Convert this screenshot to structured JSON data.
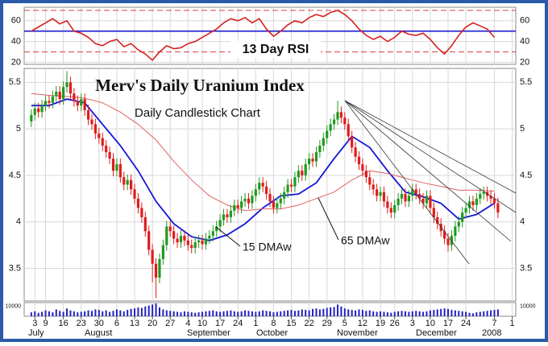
{
  "chart_data": [
    {
      "type": "line",
      "title": "13 Day RSI",
      "color": "#d62020",
      "x": [
        0,
        2,
        4,
        6,
        8,
        10,
        12,
        14,
        16,
        18,
        20,
        22,
        24,
        26,
        28,
        30,
        32,
        34,
        36,
        38,
        40,
        42,
        44,
        46,
        48,
        50,
        52,
        54,
        56,
        58,
        60,
        62,
        64,
        66,
        68,
        70,
        72,
        74,
        76,
        78,
        80,
        82,
        84,
        86,
        88,
        90,
        92,
        94,
        96,
        98,
        100,
        102,
        104,
        106,
        108,
        110,
        112,
        114,
        116,
        118,
        120,
        122,
        124,
        126,
        128,
        130
      ],
      "values": [
        50,
        54,
        58,
        62,
        57,
        60,
        50,
        48,
        44,
        38,
        36,
        40,
        42,
        35,
        38,
        32,
        28,
        22,
        30,
        36,
        33,
        34,
        38,
        40,
        44,
        48,
        52,
        58,
        62,
        60,
        63,
        58,
        62,
        52,
        45,
        50,
        56,
        60,
        58,
        63,
        66,
        64,
        68,
        70,
        66,
        60,
        52,
        46,
        42,
        45,
        40,
        44,
        50,
        47,
        46,
        48,
        42,
        34,
        28,
        36,
        46,
        54,
        58,
        55,
        52,
        44
      ],
      "ylim": [
        18,
        73
      ],
      "yticks": [
        20,
        40,
        60
      ],
      "reference_lines": [
        {
          "value": 70,
          "color": "#d84040",
          "dashed": true
        },
        {
          "value": 50,
          "color": "#1a1ad0",
          "dashed": false
        },
        {
          "value": 30,
          "color": "#d84040",
          "dashed": true
        }
      ]
    },
    {
      "type": "candlestick",
      "title": "Merv's Daily Uranium Index",
      "subtitle": "Daily Candlestick Chart",
      "up_color": "#1f9a1f",
      "down_color": "#e01c1c",
      "grid": true,
      "x": [
        0,
        1,
        2,
        3,
        4,
        5,
        6,
        7,
        8,
        9,
        10,
        11,
        12,
        13,
        14,
        15,
        16,
        17,
        18,
        19,
        20,
        21,
        22,
        23,
        24,
        25,
        26,
        27,
        28,
        29,
        30,
        31,
        32,
        33,
        34,
        35,
        36,
        37,
        38,
        39,
        40,
        41,
        42,
        43,
        44,
        45,
        46,
        47,
        48,
        49,
        50,
        51,
        52,
        53,
        54,
        55,
        56,
        57,
        58,
        59,
        60,
        61,
        62,
        63,
        64,
        65,
        66,
        67,
        68,
        69,
        70,
        71,
        72,
        73,
        74,
        75,
        76,
        77,
        78,
        79,
        80,
        81,
        82,
        83,
        84,
        85,
        86,
        87,
        88,
        89,
        90,
        91,
        92,
        93,
        94,
        95,
        96,
        97,
        98,
        99,
        100,
        101,
        102,
        103,
        104,
        105,
        106,
        107,
        108,
        109,
        110,
        111,
        112,
        113,
        114,
        115,
        116,
        117,
        118,
        119,
        120,
        121,
        122,
        123,
        124,
        125,
        126,
        127,
        128,
        129,
        130,
        131
      ],
      "open": [
        5.08,
        5.15,
        5.22,
        5.18,
        5.25,
        5.3,
        5.28,
        5.35,
        5.4,
        5.32,
        5.45,
        5.5,
        5.38,
        5.3,
        5.25,
        5.32,
        5.2,
        5.1,
        5.05,
        4.95,
        4.9,
        4.82,
        4.75,
        4.68,
        4.55,
        4.62,
        4.48,
        4.4,
        4.45,
        4.35,
        4.25,
        4.15,
        4.05,
        3.9,
        3.7,
        3.55,
        3.4,
        3.6,
        3.75,
        3.95,
        3.9,
        3.82,
        3.78,
        3.85,
        3.8,
        3.75,
        3.72,
        3.78,
        3.8,
        3.76,
        3.82,
        3.85,
        3.9,
        3.95,
        4.02,
        4.08,
        4.05,
        4.12,
        4.18,
        4.15,
        4.22,
        4.25,
        4.2,
        4.28,
        4.35,
        4.42,
        4.38,
        4.3,
        4.22,
        4.15,
        4.2,
        4.25,
        4.32,
        4.4,
        4.38,
        4.48,
        4.55,
        4.5,
        4.62,
        4.68,
        4.65,
        4.75,
        4.82,
        4.9,
        4.98,
        5.05,
        5.1,
        5.18,
        5.12,
        5.05,
        4.92,
        4.8,
        4.7,
        4.62,
        4.55,
        4.48,
        4.4,
        4.35,
        4.28,
        4.32,
        4.22,
        4.15,
        4.1,
        4.18,
        4.25,
        4.3,
        4.22,
        4.28,
        4.35,
        4.3,
        4.25,
        4.2,
        4.28,
        4.15,
        4.05,
        3.98,
        3.9,
        3.82,
        3.75,
        3.85,
        3.95,
        4.0,
        4.1,
        4.15,
        4.22,
        4.18,
        4.25,
        4.3,
        4.32,
        4.28,
        4.25,
        4.2
      ],
      "high": [
        5.21,
        5.28,
        5.28,
        5.31,
        5.36,
        5.36,
        5.41,
        5.46,
        5.46,
        5.51,
        5.62,
        5.56,
        5.44,
        5.36,
        5.38,
        5.38,
        5.26,
        5.16,
        5.11,
        5.01,
        4.96,
        4.88,
        4.81,
        4.74,
        4.68,
        4.68,
        4.54,
        4.51,
        4.51,
        4.41,
        4.31,
        4.21,
        4.11,
        3.96,
        3.76,
        3.61,
        3.66,
        3.81,
        4.01,
        4.01,
        3.96,
        3.88,
        3.91,
        3.91,
        3.86,
        3.81,
        3.84,
        3.86,
        3.86,
        3.88,
        3.91,
        3.96,
        4.01,
        4.08,
        4.14,
        4.14,
        4.18,
        4.24,
        4.24,
        4.28,
        4.31,
        4.31,
        4.34,
        4.41,
        4.48,
        4.48,
        4.44,
        4.36,
        4.28,
        4.26,
        4.31,
        4.38,
        4.46,
        4.46,
        4.54,
        4.61,
        4.61,
        4.68,
        4.74,
        4.74,
        4.81,
        4.88,
        4.96,
        5.04,
        5.11,
        5.16,
        5.3,
        5.24,
        5.18,
        5.11,
        4.98,
        4.86,
        4.76,
        4.68,
        4.61,
        4.54,
        4.46,
        4.41,
        4.38,
        4.38,
        4.28,
        4.21,
        4.24,
        4.31,
        4.36,
        4.36,
        4.34,
        4.41,
        4.41,
        4.36,
        4.31,
        4.34,
        4.34,
        4.21,
        4.11,
        4.04,
        3.96,
        3.88,
        3.91,
        4.01,
        4.06,
        4.16,
        4.21,
        4.28,
        4.28,
        4.31,
        4.36,
        4.38,
        4.38,
        4.34,
        4.31,
        4.26
      ],
      "low": [
        5.02,
        5.09,
        5.12,
        5.12,
        5.19,
        5.22,
        5.22,
        5.29,
        5.26,
        5.26,
        5.39,
        5.32,
        5.24,
        5.19,
        5.19,
        5.14,
        5.04,
        4.99,
        4.89,
        4.84,
        4.76,
        4.69,
        4.62,
        4.49,
        4.49,
        4.42,
        4.34,
        4.34,
        4.29,
        4.19,
        4.09,
        3.99,
        3.84,
        3.64,
        3.35,
        3.18,
        3.34,
        3.54,
        3.69,
        3.84,
        3.76,
        3.72,
        3.72,
        3.74,
        3.69,
        3.66,
        3.66,
        3.72,
        3.7,
        3.7,
        3.76,
        3.79,
        3.84,
        3.89,
        3.96,
        3.99,
        3.99,
        4.06,
        4.09,
        4.09,
        4.16,
        4.14,
        4.14,
        4.22,
        4.29,
        4.32,
        4.24,
        4.16,
        4.09,
        4.09,
        4.14,
        4.19,
        4.26,
        4.32,
        4.32,
        4.42,
        4.44,
        4.44,
        4.56,
        4.59,
        4.59,
        4.69,
        4.76,
        4.84,
        4.92,
        4.99,
        5.04,
        5.06,
        4.99,
        4.86,
        4.74,
        4.64,
        4.56,
        4.49,
        4.42,
        4.34,
        4.29,
        4.22,
        4.22,
        4.16,
        4.09,
        4.04,
        4.04,
        4.12,
        4.19,
        4.16,
        4.16,
        4.22,
        4.24,
        4.19,
        4.14,
        4.14,
        4.09,
        3.99,
        3.92,
        3.84,
        3.76,
        3.68,
        3.69,
        3.79,
        3.89,
        3.94,
        4.04,
        4.09,
        4.12,
        4.12,
        4.19,
        4.24,
        4.22,
        4.19,
        4.14,
        4.04
      ],
      "close": [
        5.15,
        5.22,
        5.18,
        5.25,
        5.3,
        5.28,
        5.35,
        5.4,
        5.32,
        5.45,
        5.5,
        5.38,
        5.3,
        5.25,
        5.32,
        5.2,
        5.1,
        5.05,
        4.95,
        4.9,
        4.82,
        4.75,
        4.68,
        4.55,
        4.62,
        4.48,
        4.4,
        4.45,
        4.35,
        4.25,
        4.15,
        4.05,
        3.9,
        3.7,
        3.55,
        3.4,
        3.6,
        3.75,
        3.95,
        3.9,
        3.82,
        3.78,
        3.85,
        3.8,
        3.75,
        3.72,
        3.78,
        3.8,
        3.76,
        3.82,
        3.85,
        3.9,
        3.95,
        4.02,
        4.08,
        4.05,
        4.12,
        4.18,
        4.15,
        4.22,
        4.25,
        4.2,
        4.28,
        4.35,
        4.42,
        4.38,
        4.3,
        4.22,
        4.15,
        4.2,
        4.25,
        4.32,
        4.4,
        4.38,
        4.48,
        4.55,
        4.5,
        4.62,
        4.68,
        4.65,
        4.75,
        4.82,
        4.9,
        4.98,
        5.05,
        5.1,
        5.18,
        5.12,
        5.05,
        4.92,
        4.8,
        4.7,
        4.62,
        4.55,
        4.48,
        4.4,
        4.35,
        4.28,
        4.32,
        4.22,
        4.15,
        4.1,
        4.18,
        4.25,
        4.3,
        4.22,
        4.28,
        4.35,
        4.3,
        4.25,
        4.2,
        4.28,
        4.15,
        4.05,
        3.98,
        3.9,
        3.82,
        3.75,
        3.85,
        3.95,
        4.0,
        4.1,
        4.15,
        4.22,
        4.18,
        4.25,
        4.3,
        4.32,
        4.28,
        4.25,
        4.2,
        4.1
      ],
      "series": [
        {
          "name": "15 DMAw",
          "color": "#1515d8",
          "x": [
            0,
            5,
            10,
            15,
            20,
            25,
            30,
            35,
            40,
            45,
            50,
            55,
            60,
            65,
            70,
            75,
            80,
            85,
            90,
            95,
            100,
            105,
            110,
            115,
            120,
            125,
            130
          ],
          "values": [
            5.25,
            5.25,
            5.32,
            5.28,
            5.05,
            4.82,
            4.55,
            4.22,
            3.98,
            3.84,
            3.8,
            3.86,
            3.98,
            4.15,
            4.28,
            4.3,
            4.42,
            4.68,
            4.92,
            4.8,
            4.55,
            4.32,
            4.27,
            4.2,
            4.03,
            4.08,
            4.2
          ]
        },
        {
          "name": "65 DMAw",
          "color": "#e06262",
          "x": [
            0,
            5,
            10,
            15,
            20,
            25,
            30,
            35,
            40,
            45,
            50,
            55,
            60,
            65,
            70,
            75,
            80,
            85,
            90,
            95,
            100,
            105,
            110,
            115,
            120,
            125,
            130
          ],
          "values": [
            5.38,
            5.36,
            5.35,
            5.33,
            5.28,
            5.18,
            5.05,
            4.88,
            4.65,
            4.45,
            4.28,
            4.18,
            4.12,
            4.14,
            4.14,
            4.18,
            4.25,
            4.32,
            4.45,
            4.55,
            4.52,
            4.47,
            4.42,
            4.38,
            4.34,
            4.34,
            4.33
          ]
        }
      ],
      "xlim": [
        -2,
        136
      ],
      "xticks": [
        {
          "value": 1,
          "label": "3"
        },
        {
          "value": 4,
          "label": "9"
        },
        {
          "value": 9,
          "label": "16"
        },
        {
          "value": 14,
          "label": "23"
        },
        {
          "value": 19,
          "label": "30"
        },
        {
          "value": 24,
          "label": "6"
        },
        {
          "value": 29,
          "label": "13"
        },
        {
          "value": 34,
          "label": "20"
        },
        {
          "value": 39,
          "label": "27"
        },
        {
          "value": 44,
          "label": "4"
        },
        {
          "value": 48,
          "label": "10"
        },
        {
          "value": 53,
          "label": "17"
        },
        {
          "value": 58,
          "label": "24"
        },
        {
          "value": 63,
          "label": "1"
        },
        {
          "value": 68,
          "label": "8"
        },
        {
          "value": 73,
          "label": "15"
        },
        {
          "value": 78,
          "label": "22"
        },
        {
          "value": 83,
          "label": "29"
        },
        {
          "value": 88,
          "label": "5"
        },
        {
          "value": 93,
          "label": "12"
        },
        {
          "value": 98,
          "label": "19"
        },
        {
          "value": 102,
          "label": "26"
        },
        {
          "value": 107,
          "label": "3"
        },
        {
          "value": 112,
          "label": "10"
        },
        {
          "value": 117,
          "label": "17"
        },
        {
          "value": 122,
          "label": "24"
        },
        {
          "value": 130,
          "label": "7"
        },
        {
          "value": 135,
          "label": "1"
        }
      ],
      "months": [
        "July",
        "August",
        "September",
        "October",
        "November",
        "December",
        "2008"
      ],
      "ylim": [
        3.15,
        5.65
      ],
      "yticks": [
        3.5,
        4.0,
        4.5,
        5.0,
        5.5
      ]
    },
    {
      "type": "bar",
      "color": "#2222c0",
      "x": [
        0,
        1,
        2,
        3,
        4,
        5,
        6,
        7,
        8,
        9,
        10,
        11,
        12,
        13,
        14,
        15,
        16,
        17,
        18,
        19,
        20,
        21,
        22,
        23,
        24,
        25,
        26,
        27,
        28,
        29,
        30,
        31,
        32,
        33,
        34,
        35,
        36,
        37,
        38,
        39,
        40,
        41,
        42,
        43,
        44,
        45,
        46,
        47,
        48,
        49,
        50,
        51,
        52,
        53,
        54,
        55,
        56,
        57,
        58,
        59,
        60,
        61,
        62,
        63,
        64,
        65,
        66,
        67,
        68,
        69,
        70,
        71,
        72,
        73,
        74,
        75,
        76,
        77,
        78,
        79,
        80,
        81,
        82,
        83,
        84,
        85,
        86,
        87,
        88,
        89,
        90,
        91,
        92,
        93,
        94,
        95,
        96,
        97,
        98,
        99,
        100,
        101,
        102,
        103,
        104,
        105,
        106,
        107,
        108,
        109,
        110,
        111,
        112,
        113,
        114,
        115,
        116,
        117,
        118,
        119,
        120,
        121,
        122,
        123,
        124,
        125,
        126,
        127,
        128,
        129,
        130,
        131
      ],
      "values": [
        4000,
        5000,
        3500,
        4500,
        6000,
        5000,
        4000,
        7000,
        5500,
        4500,
        8000,
        6000,
        5000,
        4000,
        4500,
        5000,
        6000,
        5500,
        7000,
        6500,
        5000,
        6000,
        4500,
        5500,
        7000,
        6000,
        5000,
        6500,
        7500,
        8000,
        9000,
        8500,
        10000,
        11000,
        12000,
        13000,
        9000,
        7000,
        6000,
        5500,
        5000,
        4500,
        4000,
        5000,
        4500,
        4000,
        3500,
        4000,
        4500,
        5000,
        5500,
        6000,
        5000,
        4500,
        5000,
        5500,
        6000,
        5000,
        4500,
        5000,
        6000,
        5500,
        5000,
        4500,
        5000,
        6000,
        5500,
        5000,
        4000,
        4500,
        5000,
        5500,
        6000,
        6500,
        5500,
        6000,
        7000,
        6500,
        6000,
        7500,
        8000,
        7000,
        7500,
        8500,
        9000,
        9500,
        12000,
        10000,
        8000,
        7000,
        6500,
        6000,
        7000,
        6500,
        5500,
        6000,
        5000,
        4500,
        5000,
        4500,
        4000,
        3500,
        4500,
        5000,
        5500,
        5000,
        4500,
        5000,
        5500,
        5000,
        4500,
        5000,
        6000,
        6500,
        7000,
        7500,
        8000,
        7500,
        6500,
        6000,
        5500,
        5000,
        4500,
        3500,
        3000,
        4000,
        4500,
        5000,
        5500,
        6000,
        6500,
        7000
      ],
      "ylim": [
        0,
        14000
      ],
      "yticks": [
        10000
      ]
    }
  ]
}
